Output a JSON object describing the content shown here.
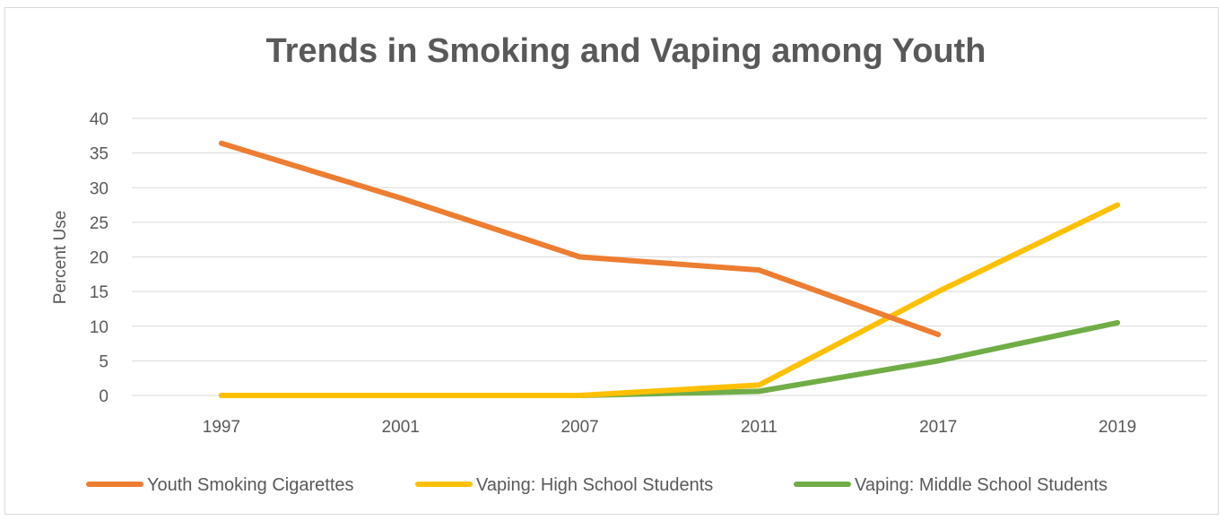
{
  "chart_data": {
    "type": "line",
    "title": "Trends in Smoking and Vaping among Youth",
    "xlabel": "",
    "ylabel": "Percent Use",
    "categories": [
      "1997",
      "2001",
      "2007",
      "2011",
      "2017",
      "2019"
    ],
    "ylim": [
      0,
      40
    ],
    "yticks": [
      0,
      5,
      10,
      15,
      20,
      25,
      30,
      35,
      40
    ],
    "grid": true,
    "legend": "bottom",
    "series": [
      {
        "name": "Youth Smoking Cigarettes",
        "color": "#ed7d31",
        "values": [
          36.4,
          28.5,
          20.0,
          18.1,
          8.8,
          null
        ]
      },
      {
        "name": "Vaping: High School Students",
        "color": "#ffc000",
        "values": [
          0,
          0,
          0,
          1.5,
          15.0,
          27.5
        ]
      },
      {
        "name": "Vaping: Middle School Students",
        "color": "#70ad47",
        "values": [
          0,
          0,
          0,
          0.6,
          5.0,
          10.5
        ]
      }
    ]
  }
}
